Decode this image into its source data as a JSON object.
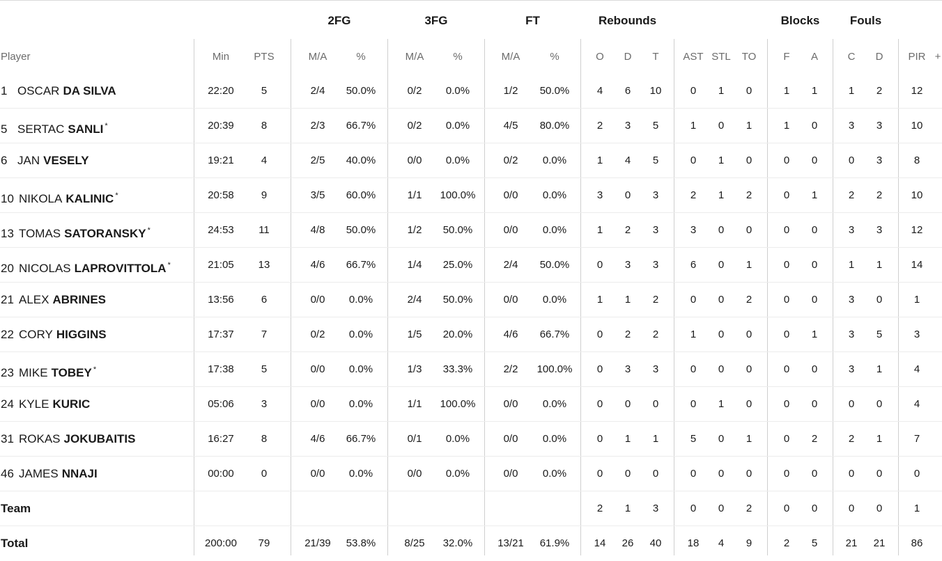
{
  "group_headers": {
    "fg2": "2FG",
    "fg3": "3FG",
    "ft": "FT",
    "rebounds": "Rebounds",
    "blocks": "Blocks",
    "fouls": "Fouls"
  },
  "column_headers": {
    "player": "Player",
    "min": "Min",
    "pts": "PTS",
    "fg2_ma": "M/A",
    "fg2_pct": "%",
    "fg3_ma": "M/A",
    "fg3_pct": "%",
    "ft_ma": "M/A",
    "ft_pct": "%",
    "reb_o": "O",
    "reb_d": "D",
    "reb_t": "T",
    "ast": "AST",
    "stl": "STL",
    "to": "TO",
    "blk_f": "F",
    "blk_a": "A",
    "foul_c": "C",
    "foul_d": "D",
    "pir": "PIR",
    "more": "+"
  },
  "players": [
    {
      "num": "1",
      "first": "OSCAR",
      "last": "DA SILVA",
      "star": "",
      "min": "22:20",
      "pts": "5",
      "fg2_ma": "2/4",
      "fg2_pct": "50.0%",
      "fg3_ma": "0/2",
      "fg3_pct": "0.0%",
      "ft_ma": "1/2",
      "ft_pct": "50.0%",
      "reb_o": "4",
      "reb_d": "6",
      "reb_t": "10",
      "ast": "0",
      "stl": "1",
      "to": "0",
      "blk_f": "1",
      "blk_a": "1",
      "foul_c": "1",
      "foul_d": "2",
      "pir": "12"
    },
    {
      "num": "5",
      "first": "SERTAC",
      "last": "SANLI",
      "star": "*",
      "min": "20:39",
      "pts": "8",
      "fg2_ma": "2/3",
      "fg2_pct": "66.7%",
      "fg3_ma": "0/2",
      "fg3_pct": "0.0%",
      "ft_ma": "4/5",
      "ft_pct": "80.0%",
      "reb_o": "2",
      "reb_d": "3",
      "reb_t": "5",
      "ast": "1",
      "stl": "0",
      "to": "1",
      "blk_f": "1",
      "blk_a": "0",
      "foul_c": "3",
      "foul_d": "3",
      "pir": "10"
    },
    {
      "num": "6",
      "first": "JAN",
      "last": "VESELY",
      "star": "",
      "min": "19:21",
      "pts": "4",
      "fg2_ma": "2/5",
      "fg2_pct": "40.0%",
      "fg3_ma": "0/0",
      "fg3_pct": "0.0%",
      "ft_ma": "0/2",
      "ft_pct": "0.0%",
      "reb_o": "1",
      "reb_d": "4",
      "reb_t": "5",
      "ast": "0",
      "stl": "1",
      "to": "0",
      "blk_f": "0",
      "blk_a": "0",
      "foul_c": "0",
      "foul_d": "3",
      "pir": "8"
    },
    {
      "num": "10",
      "first": "NIKOLA",
      "last": "KALINIC",
      "star": "*",
      "min": "20:58",
      "pts": "9",
      "fg2_ma": "3/5",
      "fg2_pct": "60.0%",
      "fg3_ma": "1/1",
      "fg3_pct": "100.0%",
      "ft_ma": "0/0",
      "ft_pct": "0.0%",
      "reb_o": "3",
      "reb_d": "0",
      "reb_t": "3",
      "ast": "2",
      "stl": "1",
      "to": "2",
      "blk_f": "0",
      "blk_a": "1",
      "foul_c": "2",
      "foul_d": "2",
      "pir": "10"
    },
    {
      "num": "13",
      "first": "TOMAS",
      "last": "SATORANSKY",
      "star": "*",
      "min": "24:53",
      "pts": "11",
      "fg2_ma": "4/8",
      "fg2_pct": "50.0%",
      "fg3_ma": "1/2",
      "fg3_pct": "50.0%",
      "ft_ma": "0/0",
      "ft_pct": "0.0%",
      "reb_o": "1",
      "reb_d": "2",
      "reb_t": "3",
      "ast": "3",
      "stl": "0",
      "to": "0",
      "blk_f": "0",
      "blk_a": "0",
      "foul_c": "3",
      "foul_d": "3",
      "pir": "12"
    },
    {
      "num": "20",
      "first": "NICOLAS",
      "last": "LAPROVITTOLA",
      "star": "*",
      "min": "21:05",
      "pts": "13",
      "fg2_ma": "4/6",
      "fg2_pct": "66.7%",
      "fg3_ma": "1/4",
      "fg3_pct": "25.0%",
      "ft_ma": "2/4",
      "ft_pct": "50.0%",
      "reb_o": "0",
      "reb_d": "3",
      "reb_t": "3",
      "ast": "6",
      "stl": "0",
      "to": "1",
      "blk_f": "0",
      "blk_a": "0",
      "foul_c": "1",
      "foul_d": "1",
      "pir": "14"
    },
    {
      "num": "21",
      "first": "ALEX",
      "last": "ABRINES",
      "star": "",
      "min": "13:56",
      "pts": "6",
      "fg2_ma": "0/0",
      "fg2_pct": "0.0%",
      "fg3_ma": "2/4",
      "fg3_pct": "50.0%",
      "ft_ma": "0/0",
      "ft_pct": "0.0%",
      "reb_o": "1",
      "reb_d": "1",
      "reb_t": "2",
      "ast": "0",
      "stl": "0",
      "to": "2",
      "blk_f": "0",
      "blk_a": "0",
      "foul_c": "3",
      "foul_d": "0",
      "pir": "1"
    },
    {
      "num": "22",
      "first": "CORY",
      "last": "HIGGINS",
      "star": "",
      "min": "17:37",
      "pts": "7",
      "fg2_ma": "0/2",
      "fg2_pct": "0.0%",
      "fg3_ma": "1/5",
      "fg3_pct": "20.0%",
      "ft_ma": "4/6",
      "ft_pct": "66.7%",
      "reb_o": "0",
      "reb_d": "2",
      "reb_t": "2",
      "ast": "1",
      "stl": "0",
      "to": "0",
      "blk_f": "0",
      "blk_a": "1",
      "foul_c": "3",
      "foul_d": "5",
      "pir": "3"
    },
    {
      "num": "23",
      "first": "MIKE",
      "last": "TOBEY",
      "star": "*",
      "min": "17:38",
      "pts": "5",
      "fg2_ma": "0/0",
      "fg2_pct": "0.0%",
      "fg3_ma": "1/3",
      "fg3_pct": "33.3%",
      "ft_ma": "2/2",
      "ft_pct": "100.0%",
      "reb_o": "0",
      "reb_d": "3",
      "reb_t": "3",
      "ast": "0",
      "stl": "0",
      "to": "0",
      "blk_f": "0",
      "blk_a": "0",
      "foul_c": "3",
      "foul_d": "1",
      "pir": "4"
    },
    {
      "num": "24",
      "first": "KYLE",
      "last": "KURIC",
      "star": "",
      "min": "05:06",
      "pts": "3",
      "fg2_ma": "0/0",
      "fg2_pct": "0.0%",
      "fg3_ma": "1/1",
      "fg3_pct": "100.0%",
      "ft_ma": "0/0",
      "ft_pct": "0.0%",
      "reb_o": "0",
      "reb_d": "0",
      "reb_t": "0",
      "ast": "0",
      "stl": "1",
      "to": "0",
      "blk_f": "0",
      "blk_a": "0",
      "foul_c": "0",
      "foul_d": "0",
      "pir": "4"
    },
    {
      "num": "31",
      "first": "ROKAS",
      "last": "JOKUBAITIS",
      "star": "",
      "min": "16:27",
      "pts": "8",
      "fg2_ma": "4/6",
      "fg2_pct": "66.7%",
      "fg3_ma": "0/1",
      "fg3_pct": "0.0%",
      "ft_ma": "0/0",
      "ft_pct": "0.0%",
      "reb_o": "0",
      "reb_d": "1",
      "reb_t": "1",
      "ast": "5",
      "stl": "0",
      "to": "1",
      "blk_f": "0",
      "blk_a": "2",
      "foul_c": "2",
      "foul_d": "1",
      "pir": "7"
    },
    {
      "num": "46",
      "first": "JAMES",
      "last": "NNAJI",
      "star": "",
      "min": "00:00",
      "pts": "0",
      "fg2_ma": "0/0",
      "fg2_pct": "0.0%",
      "fg3_ma": "0/0",
      "fg3_pct": "0.0%",
      "ft_ma": "0/0",
      "ft_pct": "0.0%",
      "reb_o": "0",
      "reb_d": "0",
      "reb_t": "0",
      "ast": "0",
      "stl": "0",
      "to": "0",
      "blk_f": "0",
      "blk_a": "0",
      "foul_c": "0",
      "foul_d": "0",
      "pir": "0"
    }
  ],
  "team": {
    "label": "Team",
    "reb_o": "2",
    "reb_d": "1",
    "reb_t": "3",
    "ast": "0",
    "stl": "0",
    "to": "2",
    "blk_f": "0",
    "blk_a": "0",
    "foul_c": "0",
    "foul_d": "0",
    "pir": "1"
  },
  "total": {
    "label": "Total",
    "min": "200:00",
    "pts": "79",
    "fg2_ma": "21/39",
    "fg2_pct": "53.8%",
    "fg3_ma": "8/25",
    "fg3_pct": "32.0%",
    "ft_ma": "13/21",
    "ft_pct": "61.9%",
    "reb_o": "14",
    "reb_d": "26",
    "reb_t": "40",
    "ast": "18",
    "stl": "4",
    "to": "9",
    "blk_f": "2",
    "blk_a": "5",
    "foul_c": "21",
    "foul_d": "21",
    "pir": "86"
  }
}
